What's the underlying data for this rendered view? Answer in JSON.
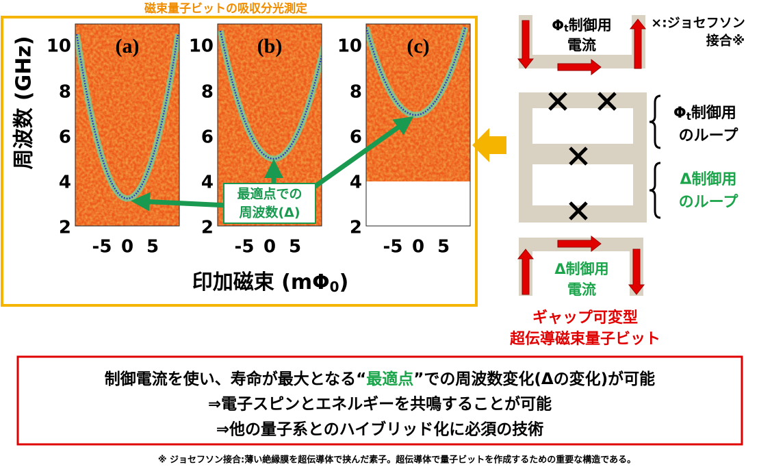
{
  "panel": {
    "title": "磁束量子ビットの吸収分光測定",
    "y_label": "周波数 (GHz)",
    "x_label": {
      "main": "印加磁束 (mΦ",
      "sub": "0",
      "end": ")"
    },
    "plots": [
      {
        "label": "(a)"
      },
      {
        "label": "(b)"
      },
      {
        "label": "(c)"
      }
    ],
    "yticks": [
      "10",
      "8",
      "6",
      "4",
      "2"
    ],
    "xticks": [
      "-5",
      "0",
      "5"
    ],
    "annotation": [
      "最適点での",
      "周波数(Δ)"
    ]
  },
  "circuit": {
    "legend": [
      "×:ジョセフソン",
      "接合※"
    ],
    "phi_current": {
      "symbol": "Φ",
      "sub": "t",
      "text": "制御用",
      "line2": "電流"
    },
    "phi_loop": {
      "symbol": "Φ",
      "sub": "t",
      "text": "制御用",
      "line2": "のループ"
    },
    "delta_loop": [
      "Δ制御用",
      "のループ"
    ],
    "delta_current": [
      "Δ制御用",
      "電流"
    ],
    "device": [
      "ギャップ可変型",
      "超伝導磁束量子ビット"
    ]
  },
  "summary": {
    "line1": {
      "before": "制御電流を使い、寿命が最大となる“",
      "highlight": "最適点",
      "after": "”での周波数変化(Δの変化)が可能"
    },
    "line2": "⇒電子スピンとエネルギーを共鳴することが可能",
    "line3": "⇒他の量子系とのハイブリッド化に必須の技術"
  },
  "footnote": "※ ジョセフソン接合:薄い絶縁膜を超伝導体で挟んだ素子。超伝導体で量子ビットを作成するための重要な構造である。"
}
